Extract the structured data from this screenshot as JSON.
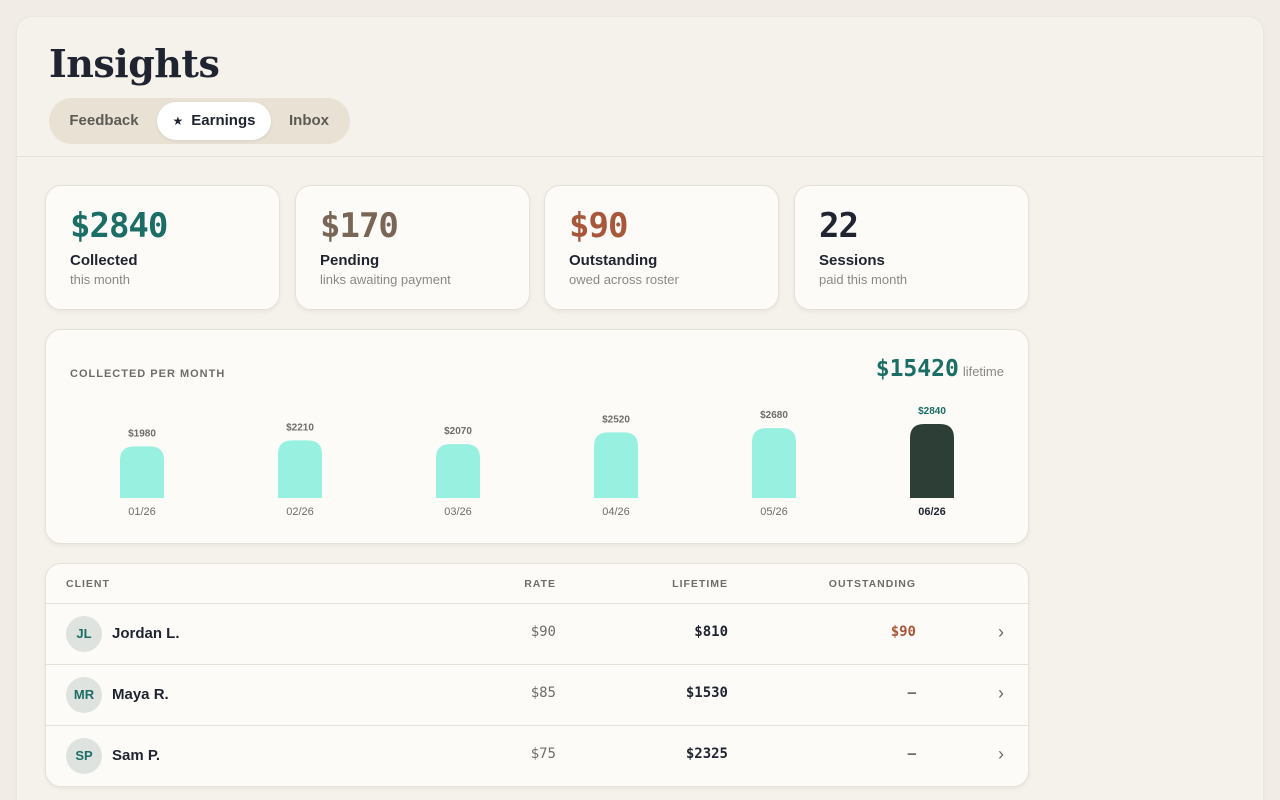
{
  "page": {
    "title": "Insights"
  },
  "tabs": [
    {
      "label": "Feedback",
      "active": false
    },
    {
      "label": "Earnings",
      "active": true,
      "icon": "star-icon"
    },
    {
      "label": "Inbox",
      "active": false
    }
  ],
  "stats": [
    {
      "value": "$2840",
      "label": "Collected",
      "sub": "this month",
      "color": "#1b6e66"
    },
    {
      "value": "$170",
      "label": "Pending",
      "sub": "links awaiting payment",
      "color": "#7a6656"
    },
    {
      "value": "$90",
      "label": "Outstanding",
      "sub": "owed across roster",
      "color": "#a8583a"
    },
    {
      "value": "22",
      "label": "Sessions",
      "sub": "paid this month",
      "color": "#1f2430"
    }
  ],
  "earnings_chart": {
    "heading": "COLLECTED PER MONTH",
    "lifetime_amount": "$15420",
    "lifetime_label": "lifetime"
  },
  "chart_data": {
    "type": "bar",
    "title": "COLLECTED PER MONTH",
    "categories": [
      "01/26",
      "02/26",
      "03/26",
      "04/26",
      "05/26",
      "06/26"
    ],
    "values": [
      1980,
      2210,
      2070,
      2520,
      2680,
      2840
    ],
    "value_labels": [
      "$1980",
      "$2210",
      "$2070",
      "$2520",
      "$2680",
      "$2840"
    ],
    "highlight_index": 5,
    "colors": {
      "bar": "#98f0e1",
      "highlight": "#2c3e36",
      "highlight_label": "#1b6e66"
    },
    "grid": false
  },
  "table": {
    "headers": {
      "client": "CLIENT",
      "rate": "RATE",
      "lifetime": "LIFETIME",
      "outstanding": "OUTSTANDING"
    },
    "rows": [
      {
        "initials": "JL",
        "name": "Jordan L.",
        "rate": "$90",
        "lifetime": "$810",
        "outstanding": "$90",
        "owed": true
      },
      {
        "initials": "MR",
        "name": "Maya R.",
        "rate": "$85",
        "lifetime": "$1530",
        "outstanding": "–",
        "owed": false
      },
      {
        "initials": "SP",
        "name": "Sam P.",
        "rate": "$75",
        "lifetime": "$2325",
        "outstanding": "–",
        "owed": false
      }
    ]
  }
}
